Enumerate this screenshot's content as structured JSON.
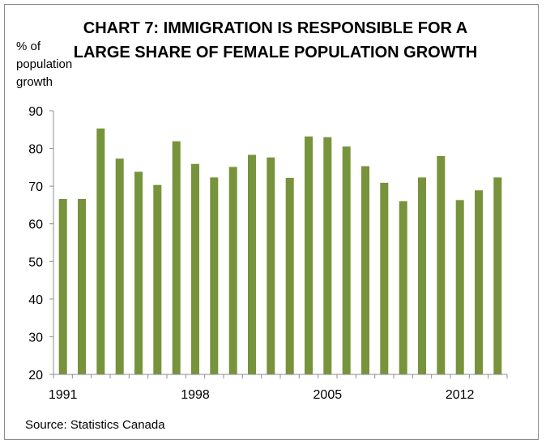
{
  "chart_data": {
    "type": "bar",
    "title": "CHART 7: IMMIGRATION IS RESPONSIBLE FOR A LARGE SHARE OF FEMALE POPULATION GROWTH",
    "ylabel": "% of population growth",
    "xlabel": "",
    "ylim": [
      20,
      90
    ],
    "y_ticks": [
      "20",
      "30",
      "40",
      "50",
      "60",
      "70",
      "80",
      "90"
    ],
    "x_tick_labels": [
      {
        "label": "1991",
        "category_index": 0
      },
      {
        "label": "1998",
        "category_index": 7
      },
      {
        "label": "2005",
        "category_index": 14
      },
      {
        "label": "2012",
        "category_index": 21
      }
    ],
    "categories": [
      "1991",
      "1992",
      "1993",
      "1994",
      "1995",
      "1996",
      "1997",
      "1998",
      "1999",
      "2000",
      "2001",
      "2002",
      "2003",
      "2004",
      "2005",
      "2006",
      "2007",
      "2008",
      "2009",
      "2010",
      "2011",
      "2012",
      "2013",
      "2014"
    ],
    "values": [
      66.6,
      66.6,
      85.3,
      77.3,
      73.8,
      70.3,
      81.9,
      75.9,
      72.3,
      75.1,
      78.3,
      77.6,
      72.2,
      83.2,
      83.0,
      80.5,
      75.3,
      70.9,
      66.0,
      72.3,
      78.0,
      66.3,
      68.9,
      72.3
    ],
    "bar_color": "#77933c",
    "grid": false,
    "legend": false,
    "source": "Source: Statistics Canada"
  }
}
